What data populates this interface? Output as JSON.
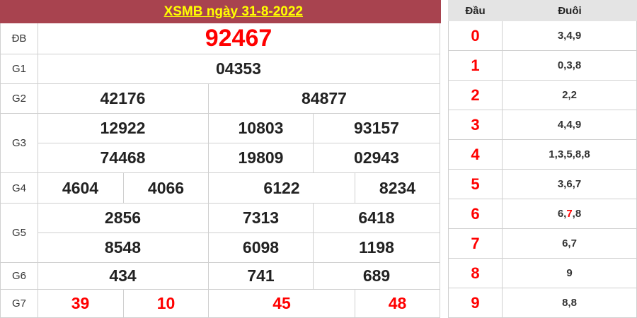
{
  "title": "XSMB ngày 31-8-2022",
  "prizes": [
    {
      "label": "ĐB",
      "numbers": [
        "92467"
      ]
    },
    {
      "label": "G1",
      "numbers": [
        "04353"
      ]
    },
    {
      "label": "G2",
      "numbers": [
        "42176",
        "84877"
      ]
    },
    {
      "label": "G3",
      "numbers": [
        "12922",
        "10803",
        "93157",
        "74468",
        "19809",
        "02943"
      ]
    },
    {
      "label": "G4",
      "numbers": [
        "4604",
        "4066",
        "6122",
        "8234"
      ]
    },
    {
      "label": "G5",
      "numbers": [
        "2856",
        "7313",
        "6418",
        "8548",
        "6098",
        "1198"
      ]
    },
    {
      "label": "G6",
      "numbers": [
        "434",
        "741",
        "689"
      ]
    },
    {
      "label": "G7",
      "numbers": [
        "39",
        "10",
        "45",
        "48"
      ]
    }
  ],
  "loto": {
    "head_label": "Đầu",
    "tail_label": "Đuôi",
    "rows": [
      {
        "head": "0",
        "tail": [
          "3",
          "4",
          "9"
        ]
      },
      {
        "head": "1",
        "tail": [
          "0",
          "3",
          "8"
        ]
      },
      {
        "head": "2",
        "tail": [
          "2",
          "2"
        ]
      },
      {
        "head": "3",
        "tail": [
          "4",
          "4",
          "9"
        ]
      },
      {
        "head": "4",
        "tail": [
          "1",
          "3",
          "5",
          "8",
          "8"
        ]
      },
      {
        "head": "5",
        "tail": [
          "3",
          "6",
          "7"
        ]
      },
      {
        "head": "6",
        "tail": [
          "6",
          "7",
          "8"
        ],
        "highlight_index": 1
      },
      {
        "head": "7",
        "tail": [
          "6",
          "7"
        ]
      },
      {
        "head": "8",
        "tail": [
          "9"
        ]
      },
      {
        "head": "9",
        "tail": [
          "8",
          "8"
        ]
      }
    ]
  },
  "colors": {
    "header_bg": "#a8434f",
    "title": "#ffff00",
    "highlight": "#ff0000"
  }
}
